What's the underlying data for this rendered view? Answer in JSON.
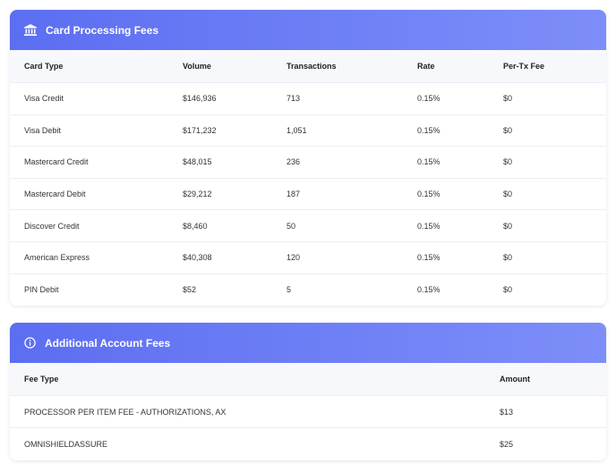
{
  "card_processing": {
    "title": "Card Processing Fees",
    "columns": [
      "Card Type",
      "Volume",
      "Transactions",
      "Rate",
      "Per-Tx Fee"
    ],
    "rows": [
      [
        "Visa Credit",
        "$146,936",
        "713",
        "0.15%",
        "$0"
      ],
      [
        "Visa Debit",
        "$171,232",
        "1,051",
        "0.15%",
        "$0"
      ],
      [
        "Mastercard Credit",
        "$48,015",
        "236",
        "0.15%",
        "$0"
      ],
      [
        "Mastercard Debit",
        "$29,212",
        "187",
        "0.15%",
        "$0"
      ],
      [
        "Discover Credit",
        "$8,460",
        "50",
        "0.15%",
        "$0"
      ],
      [
        "American Express",
        "$40,308",
        "120",
        "0.15%",
        "$0"
      ],
      [
        "PIN Debit",
        "$52",
        "5",
        "0.15%",
        "$0"
      ]
    ]
  },
  "account_fees": {
    "title": "Additional Account Fees",
    "columns": [
      "Fee Type",
      "Amount"
    ],
    "rows": [
      [
        "PROCESSOR PER ITEM FEE - AUTHORIZATIONS, AX",
        "$13"
      ],
      [
        "OMNISHIELDASSURE",
        "$25"
      ]
    ]
  }
}
